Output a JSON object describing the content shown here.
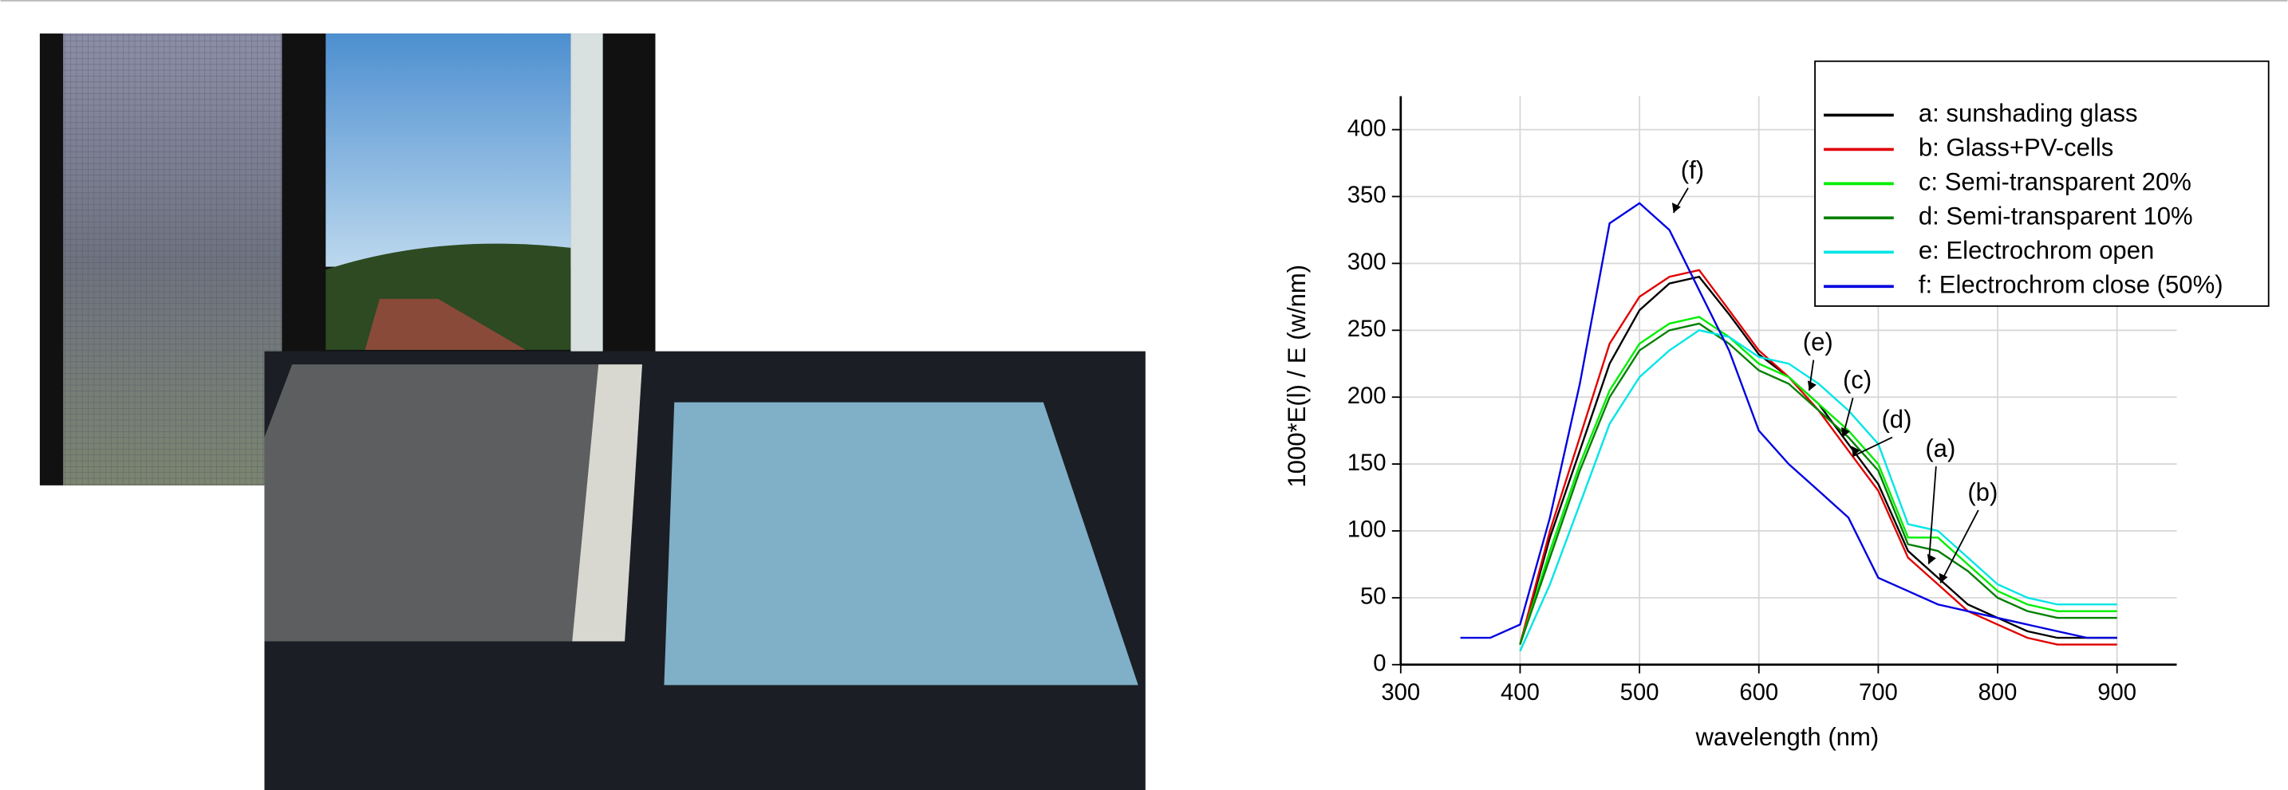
{
  "chart_data": {
    "type": "line",
    "x_label": "wavelength (nm)",
    "y_label": "1000*E(l) / E (w/nm)",
    "x": [
      350,
      375,
      400,
      425,
      450,
      475,
      500,
      525,
      550,
      575,
      600,
      625,
      650,
      675,
      700,
      725,
      750,
      775,
      800,
      825,
      850,
      875,
      900
    ],
    "series": [
      {
        "name": "a: sunshading glass",
        "color": "#000000",
        "values": [
          null,
          null,
          15,
          95,
          160,
          225,
          265,
          285,
          290,
          262,
          232,
          215,
          195,
          165,
          135,
          85,
          65,
          45,
          35,
          25,
          20,
          20,
          20
        ]
      },
      {
        "name": "b: Glass+PV-cells",
        "color": "#e00000",
        "values": [
          null,
          null,
          15,
          100,
          170,
          240,
          275,
          290,
          295,
          265,
          235,
          215,
          190,
          160,
          130,
          80,
          60,
          40,
          30,
          20,
          15,
          15,
          15
        ]
      },
      {
        "name": "c: Semi-transparent 20%",
        "color": "#00ee00",
        "values": [
          null,
          null,
          15,
          85,
          150,
          205,
          240,
          255,
          260,
          245,
          225,
          215,
          195,
          175,
          150,
          95,
          95,
          75,
          55,
          45,
          40,
          40,
          40
        ]
      },
      {
        "name": "d: Semi-transparent 10%",
        "color": "#008000",
        "values": [
          null,
          null,
          15,
          80,
          145,
          200,
          235,
          250,
          255,
          240,
          220,
          210,
          190,
          170,
          145,
          90,
          85,
          70,
          50,
          40,
          35,
          35,
          35
        ]
      },
      {
        "name": "e: Electrochrom open",
        "color": "#00e5e5",
        "values": [
          null,
          null,
          10,
          60,
          120,
          180,
          215,
          235,
          250,
          245,
          230,
          225,
          210,
          190,
          165,
          105,
          100,
          80,
          60,
          50,
          45,
          45,
          45
        ]
      },
      {
        "name": "f: Electrochrom close (50%)",
        "color": "#0000e0",
        "values": [
          20,
          20,
          30,
          110,
          210,
          330,
          345,
          325,
          280,
          235,
          175,
          150,
          130,
          110,
          65,
          55,
          45,
          40,
          35,
          30,
          25,
          20,
          20
        ]
      }
    ],
    "annotations": [
      "(f)",
      "(e)",
      "(c)",
      "(d)",
      "(a)",
      "(b)"
    ],
    "xlim": [
      300,
      950
    ],
    "xticks": [
      300,
      400,
      500,
      600,
      700,
      800,
      900
    ],
    "ylim": [
      0,
      425
    ],
    "yticks": [
      0,
      50,
      100,
      150,
      200,
      250,
      300,
      350,
      400
    ],
    "grid": true
  }
}
